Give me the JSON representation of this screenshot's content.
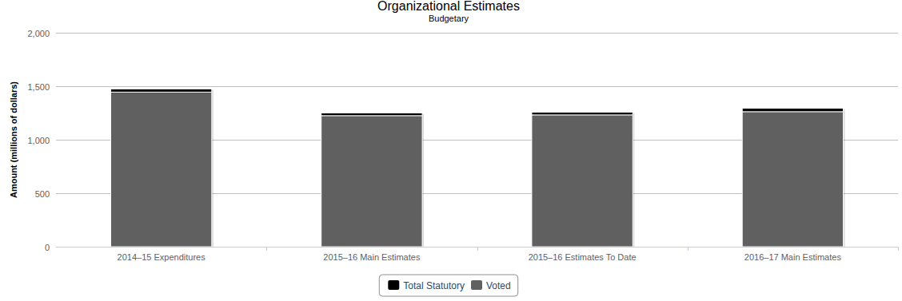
{
  "chart_data": {
    "type": "bar",
    "title": "Organizational Estimates",
    "subtitle": "Budgetary",
    "y_label": "Amount (millions of dollars)",
    "categories": [
      "2014–15 Expenditures",
      "2015–16 Main Estimates",
      "2015–16 Estimates To Date",
      "2016–17 Main Estimates"
    ],
    "series": [
      {
        "name": "Voted",
        "color": "#606060",
        "values": [
          1445,
          1225,
          1232,
          1262
        ]
      },
      {
        "name": "Total Statutory",
        "color": "#000000",
        "values": [
          30,
          25,
          25,
          32
        ]
      }
    ],
    "stacked": true,
    "grid": true,
    "legend": "bottom",
    "ylim": [
      0,
      2000
    ],
    "yticks": [
      0,
      500,
      {
        "value": 1000,
        "label": "1,000"
      },
      {
        "value": 1500,
        "label": "1,500"
      },
      {
        "value": 2000,
        "label": "2,000"
      }
    ]
  }
}
